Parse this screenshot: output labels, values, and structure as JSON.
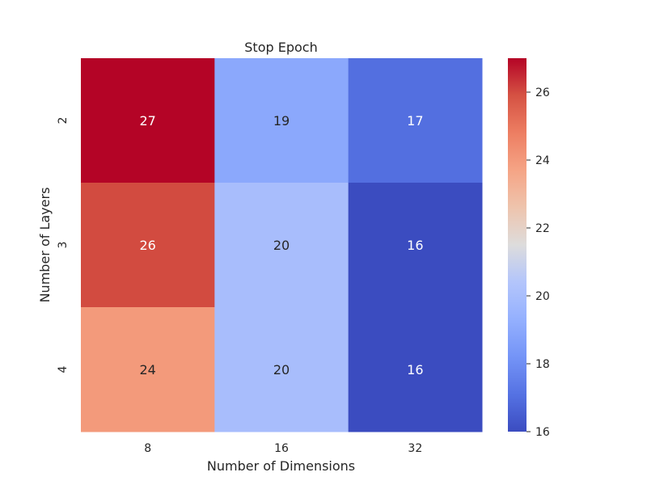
{
  "chart_data": {
    "type": "heatmap",
    "title": "Stop Epoch",
    "xlabel": "Number of Dimensions",
    "ylabel": "Number of Layers",
    "x_categories": [
      "8",
      "16",
      "32"
    ],
    "y_categories": [
      "2",
      "3",
      "4"
    ],
    "values": [
      [
        27,
        19,
        17
      ],
      [
        26,
        20,
        16
      ],
      [
        24,
        20,
        16
      ]
    ],
    "colorbar": {
      "min": 16,
      "max": 27,
      "ticks": [
        "16",
        "18",
        "20",
        "22",
        "24",
        "26"
      ],
      "colormap": "coolwarm",
      "low_color": "#3b4cc0",
      "mid_color": "#dddcdc",
      "high_color": "#b40426"
    },
    "annotations": "cell values shown"
  }
}
